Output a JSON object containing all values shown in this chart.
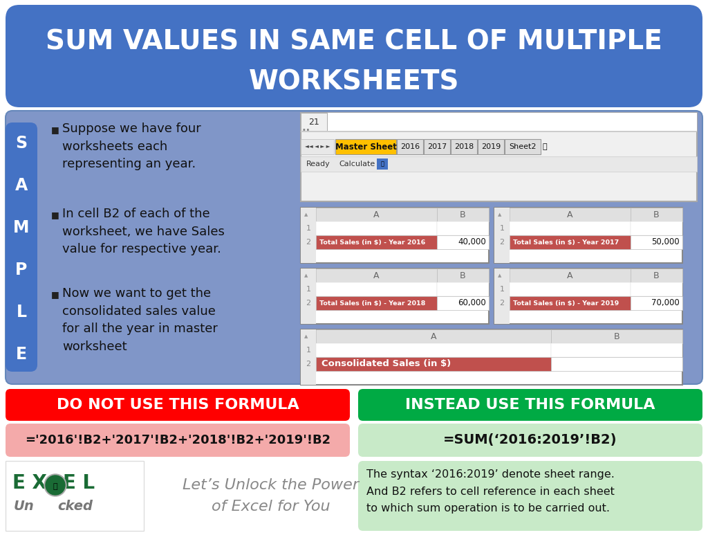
{
  "title_line1": "SUM VALUES IN SAME CELL OF MULTIPLE",
  "title_line2": "WORKSHEETS",
  "title_bg": "#4472C4",
  "title_text_color": "#FFFFFF",
  "body_bg": "#8096C8",
  "sample_bg": "#4472C4",
  "sample_letters": [
    "S",
    "A",
    "M",
    "P",
    "L",
    "E"
  ],
  "bullet1": "Suppose we have four\nworksheets each\nrepresenting an year.",
  "bullet2": "In cell B2 of each of the\nworksheet, we have Sales\nvalue for respective year.",
  "bullet3": "Now we want to get the\nconsolidated sales value\nfor all the year in master\nworksheet",
  "sheet_tabs": [
    "Master Sheet",
    "2016",
    "2017",
    "2018",
    "2019",
    "Sheet2"
  ],
  "mini_tables": [
    {
      "label": "Total Sales (in $) - Year 2016",
      "value": "40,000"
    },
    {
      "label": "Total Sales (in $) - Year 2017",
      "value": "50,000"
    },
    {
      "label": "Total Sales (in $) - Year 2018",
      "value": "60,000"
    },
    {
      "label": "Total Sales (in $) - Year 2019",
      "value": "70,000"
    }
  ],
  "master_label": "Consolidated Sales (in $)",
  "bad_formula_bg": "#FF0000",
  "bad_formula_text": "#FFFFFF",
  "bad_formula_label": "DO NOT USE THIS FORMULA",
  "bad_formula_value": "='2016'!B2+'2017'!B2+'2018'!B2+'2019'!B2",
  "bad_formula_value_bg": "#F4AAAA",
  "good_formula_bg": "#00AA44",
  "good_formula_text": "#FFFFFF",
  "good_formula_label": "INSTEAD USE THIS FORMULA",
  "good_formula_value": "=SUM(‘2016:2019’!B2)",
  "good_formula_value_bg": "#C8EAC8",
  "note_text": "The syntax ‘2016:2019’ denote sheet range.\nAnd B2 refers to cell reference in each sheet\nto which sum operation is to be carried out.",
  "logo_excel_color": "#1A6B35",
  "logo_unlocked_color": "#555555",
  "tagline": "Let’s Unlock the Power\nof Excel for You",
  "tagline_color": "#888888",
  "cell_highlight": "#C0504D",
  "cell_header_bg": "#D9D9D9",
  "outer_bg": "#FFFFFF",
  "body_border_color": "#6688BB"
}
